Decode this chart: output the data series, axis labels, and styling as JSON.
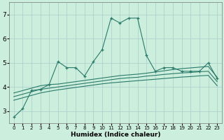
{
  "xlabel": "Humidex (Indice chaleur)",
  "background_color": "#cceedd",
  "grid_color": "#aacccc",
  "line_color": "#2a7a6a",
  "x_values": [
    0,
    1,
    2,
    3,
    4,
    5,
    6,
    7,
    8,
    9,
    10,
    11,
    12,
    13,
    14,
    15,
    16,
    17,
    18,
    19,
    20,
    21,
    22,
    23
  ],
  "series1": [
    2.75,
    3.1,
    3.85,
    3.9,
    4.1,
    5.05,
    4.8,
    4.8,
    4.45,
    5.05,
    5.55,
    6.85,
    6.65,
    6.85,
    6.85,
    5.3,
    4.65,
    4.8,
    4.8,
    4.65,
    4.65,
    4.65,
    5.0,
    4.35
  ],
  "series2": [
    3.75,
    3.85,
    3.95,
    4.05,
    4.1,
    4.12,
    4.17,
    4.22,
    4.27,
    4.32,
    4.37,
    4.42,
    4.47,
    4.5,
    4.53,
    4.57,
    4.62,
    4.67,
    4.72,
    4.76,
    4.79,
    4.82,
    4.85,
    4.4
  ],
  "series3": [
    3.6,
    3.7,
    3.8,
    3.9,
    3.95,
    4.0,
    4.05,
    4.1,
    4.15,
    4.2,
    4.25,
    4.3,
    4.35,
    4.38,
    4.4,
    4.45,
    4.48,
    4.52,
    4.55,
    4.58,
    4.6,
    4.63,
    4.65,
    4.22
  ],
  "series4": [
    3.45,
    3.55,
    3.65,
    3.75,
    3.82,
    3.88,
    3.93,
    3.98,
    4.03,
    4.08,
    4.13,
    4.17,
    4.2,
    4.23,
    4.26,
    4.29,
    4.32,
    4.35,
    4.38,
    4.41,
    4.43,
    4.46,
    4.48,
    4.05
  ],
  "ylim": [
    2.5,
    7.5
  ],
  "yticks": [
    3,
    4,
    5,
    6,
    7
  ],
  "xlim": [
    -0.5,
    23.5
  ],
  "xtick_labels": [
    "0",
    "1",
    "2",
    "3",
    "4",
    "5",
    "6",
    "7",
    "8",
    "9",
    "10",
    "11",
    "12",
    "13",
    "14",
    "15",
    "16",
    "17",
    "18",
    "19",
    "20",
    "21",
    "22",
    "23"
  ]
}
